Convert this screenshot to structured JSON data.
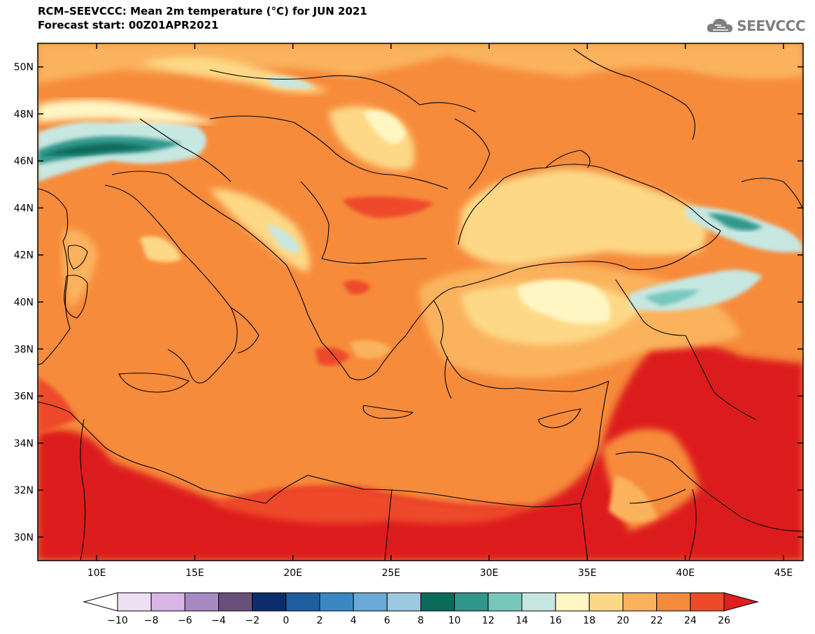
{
  "title": {
    "line1": "RCM–SEEVCCC: Mean 2m temperature (°C) for JUN 2021",
    "line2": "Forecast start: 00Z01APR2021"
  },
  "logo": {
    "text": "SEEVCCC",
    "icon": "cloud-icon"
  },
  "map": {
    "lon_range": [
      7,
      46
    ],
    "lat_range": [
      29,
      51
    ],
    "lon_ticks": [
      {
        "value": 10,
        "label": "10E"
      },
      {
        "value": 15,
        "label": "15E"
      },
      {
        "value": 20,
        "label": "20E"
      },
      {
        "value": 25,
        "label": "25E"
      },
      {
        "value": 30,
        "label": "30E"
      },
      {
        "value": 35,
        "label": "35E"
      },
      {
        "value": 40,
        "label": "40E"
      },
      {
        "value": 45,
        "label": "45E"
      }
    ],
    "lat_ticks": [
      {
        "value": 30,
        "label": "30N"
      },
      {
        "value": 32,
        "label": "32N"
      },
      {
        "value": 34,
        "label": "34N"
      },
      {
        "value": 36,
        "label": "36N"
      },
      {
        "value": 38,
        "label": "38N"
      },
      {
        "value": 40,
        "label": "40N"
      },
      {
        "value": 42,
        "label": "42N"
      },
      {
        "value": 44,
        "label": "44N"
      },
      {
        "value": 46,
        "label": "46N"
      },
      {
        "value": 48,
        "label": "48N"
      },
      {
        "value": 50,
        "label": "50N"
      }
    ]
  },
  "colorbar": {
    "labels": [
      "−10",
      "−8",
      "−6",
      "−4",
      "−2",
      "0",
      "2",
      "4",
      "6",
      "8",
      "10",
      "12",
      "14",
      "16",
      "18",
      "20",
      "22",
      "24",
      "26"
    ],
    "colors": [
      "#ffffff",
      "#eedff3",
      "#d9b6e6",
      "#a88ac2",
      "#6a4f7a",
      "#0b2d6b",
      "#1c5ea0",
      "#3a88c3",
      "#6aaad6",
      "#9cc8e2",
      "#0b6a5a",
      "#31968b",
      "#78c7bd",
      "#c7e7e1",
      "#fff6c4",
      "#fdd987",
      "#fbb25d",
      "#f68b3b",
      "#ee4a2a",
      "#dc1f1f"
    ]
  }
}
